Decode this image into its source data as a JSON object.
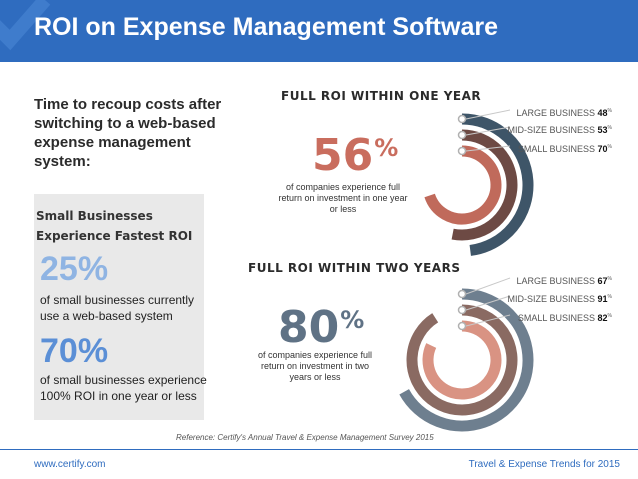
{
  "header": {
    "title": "ROI on Expense Management Software"
  },
  "intro": {
    "text": "Time to recoup costs after switching to a web-based expense management system:"
  },
  "panel": {
    "title_line1": "Small Businesses",
    "title_line2": "Experience Fastest ROI",
    "stats": [
      {
        "value": "25%",
        "text": "of small businesses currently use a web-based system",
        "color": "#8fb4e3"
      },
      {
        "value": "70%",
        "text": "of small businesses experience 100% ROI in one year or less",
        "color": "#5b8fd6"
      }
    ]
  },
  "chart_data": [
    {
      "type": "radial-bar",
      "title": "FULL ROI WITHIN ONE YEAR",
      "headline_value": "56",
      "headline_unit": "%",
      "headline_text": "of companies experience full return on investment in one year or less",
      "headline_color": "#c96d5e",
      "series": [
        {
          "name": "LARGE BUSINESS",
          "value": 48,
          "color": "#3e5568"
        },
        {
          "name": "MID-SIZE BUSINESS",
          "value": 53,
          "color": "#6d4a44"
        },
        {
          "name": "SMALL BUSINESS",
          "value": 70,
          "color": "#c06a5b"
        }
      ]
    },
    {
      "type": "radial-bar",
      "title": "FULL ROI WITHIN TWO YEARS",
      "headline_value": "80",
      "headline_unit": "%",
      "headline_text": "of companies experience full return on investment in two years or less",
      "headline_color": "#5f7285",
      "series": [
        {
          "name": "LARGE BUSINESS",
          "value": 67,
          "color": "#6e7f8f"
        },
        {
          "name": "MID-SIZE BUSINESS",
          "value": 91,
          "color": "#8a6a62"
        },
        {
          "name": "SMALL BUSINESS",
          "value": 82,
          "color": "#d99383"
        }
      ]
    }
  ],
  "reference": "Reference: Certify's Annual Travel & Expense Management Survey 2015",
  "footer": {
    "left": "www.certify.com",
    "right": "Travel & Expense Trends for 2015"
  }
}
